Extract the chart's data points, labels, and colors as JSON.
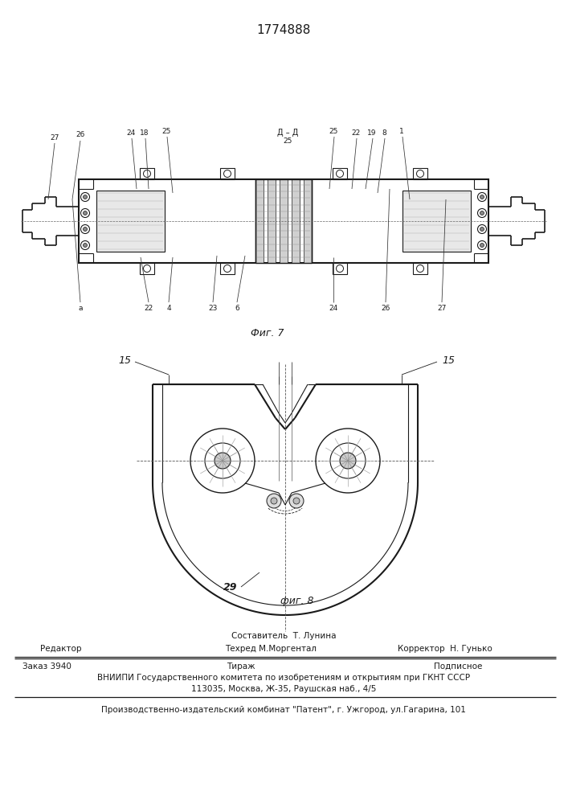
{
  "patent_number": "1774888",
  "bg_color": "#ffffff",
  "line_color": "#1a1a1a",
  "footer": {
    "editor_label": "Редактор",
    "composer_label": "Составитель  Т. Лунина",
    "techred_label": "Техред М.Моргентал",
    "corrector_label": "Корректор  Н. Гунько",
    "order": "Заказ 3940",
    "tirazh": "Тираж",
    "podpisnoe": "Подписное",
    "vnipi_line1": "ВНИИПИ Государственного комитета по изобретениям и открытиям при ГКНТ СССР",
    "vnipi_line2": "113035, Москва, Ж-35, Раушская наб., 4/5",
    "plant_line": "Производственно-издательский комбинат \"Патент\", г. Ужгород, ул.Гагарина, 101"
  },
  "fig7_caption": "Фиг. 7",
  "fig8_caption": "фиг. 8"
}
